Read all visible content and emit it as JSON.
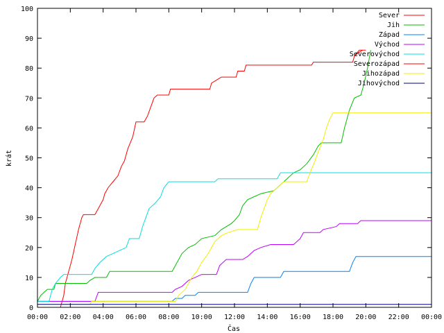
{
  "chart_data": {
    "type": "line",
    "xlabel": "Čas",
    "ylabel": "krát",
    "xlim": [
      0,
      24
    ],
    "ylim": [
      0,
      100
    ],
    "x_ticks": [
      {
        "value": 0,
        "label": "00:00"
      },
      {
        "value": 2,
        "label": "02:00"
      },
      {
        "value": 4,
        "label": "04:00"
      },
      {
        "value": 6,
        "label": "06:00"
      },
      {
        "value": 8,
        "label": "08:00"
      },
      {
        "value": 10,
        "label": "10:00"
      },
      {
        "value": 12,
        "label": "12:00"
      },
      {
        "value": 14,
        "label": "14:00"
      },
      {
        "value": 16,
        "label": "16:00"
      },
      {
        "value": 18,
        "label": "18:00"
      },
      {
        "value": 20,
        "label": "20:00"
      },
      {
        "value": 22,
        "label": "22:00"
      },
      {
        "value": 24,
        "label": "00:00"
      }
    ],
    "y_ticks": [
      0,
      10,
      20,
      30,
      40,
      50,
      60,
      70,
      80,
      90,
      100
    ],
    "grid": false,
    "legend_position": "top-right",
    "series": [
      {
        "name": "Sever",
        "color": "#ff0000",
        "points": [
          [
            1.4,
            0
          ],
          [
            1.6,
            4
          ],
          [
            1.7,
            8
          ],
          [
            1.9,
            12
          ],
          [
            2.1,
            16
          ],
          [
            2.3,
            21
          ],
          [
            2.5,
            26
          ],
          [
            2.7,
            30
          ],
          [
            2.8,
            31
          ],
          [
            3.5,
            31
          ],
          [
            3.6,
            32
          ],
          [
            3.8,
            34
          ],
          [
            4.0,
            36
          ],
          [
            4.1,
            38
          ],
          [
            4.3,
            40
          ],
          [
            4.6,
            42
          ],
          [
            4.9,
            44
          ],
          [
            5.1,
            47
          ],
          [
            5.3,
            49
          ],
          [
            5.5,
            53
          ],
          [
            5.8,
            57
          ],
          [
            6.0,
            62
          ],
          [
            6.5,
            62
          ],
          [
            6.7,
            64
          ],
          [
            6.9,
            67
          ],
          [
            7.1,
            70
          ],
          [
            7.3,
            71
          ],
          [
            8.0,
            71
          ],
          [
            8.1,
            73
          ],
          [
            10.5,
            73
          ],
          [
            10.6,
            75
          ],
          [
            10.9,
            76
          ],
          [
            11.2,
            77
          ],
          [
            12.1,
            77
          ],
          [
            12.2,
            79
          ],
          [
            12.6,
            79
          ],
          [
            12.7,
            81
          ],
          [
            16.7,
            81
          ],
          [
            16.8,
            82
          ],
          [
            19.2,
            82
          ],
          [
            19.3,
            84
          ],
          [
            19.5,
            85
          ],
          [
            19.8,
            86
          ]
        ]
      },
      {
        "name": "Jih",
        "color": "#00c000",
        "points": [
          [
            0,
            2
          ],
          [
            0.2,
            4
          ],
          [
            0.4,
            5
          ],
          [
            0.6,
            6
          ],
          [
            1.0,
            6
          ],
          [
            1.1,
            8
          ],
          [
            3.0,
            8
          ],
          [
            3.2,
            9
          ],
          [
            3.5,
            10
          ],
          [
            4.2,
            10
          ],
          [
            4.4,
            12
          ],
          [
            8.2,
            12
          ],
          [
            8.4,
            14
          ],
          [
            8.8,
            18
          ],
          [
            9.2,
            20
          ],
          [
            9.6,
            21
          ],
          [
            10.0,
            23
          ],
          [
            10.8,
            24
          ],
          [
            11.2,
            26
          ],
          [
            11.8,
            28
          ],
          [
            12.0,
            29
          ],
          [
            12.3,
            31
          ],
          [
            12.5,
            34
          ],
          [
            12.8,
            36
          ],
          [
            13.2,
            37
          ],
          [
            13.6,
            38
          ],
          [
            14.4,
            39
          ],
          [
            14.8,
            41
          ],
          [
            15.2,
            43
          ],
          [
            15.6,
            45
          ],
          [
            16.0,
            46
          ],
          [
            16.4,
            48
          ],
          [
            16.8,
            51
          ],
          [
            17.1,
            54
          ],
          [
            17.3,
            55
          ],
          [
            18.5,
            55
          ],
          [
            18.7,
            60
          ],
          [
            19.0,
            66
          ],
          [
            19.3,
            70
          ],
          [
            19.7,
            71
          ],
          [
            19.9,
            75
          ],
          [
            20.1,
            80
          ],
          [
            20.3,
            86
          ]
        ]
      },
      {
        "name": "Západ",
        "color": "#0080ff",
        "points": [
          [
            0,
            2
          ],
          [
            8.2,
            2
          ],
          [
            8.4,
            3
          ],
          [
            8.8,
            3
          ],
          [
            9.0,
            4
          ],
          [
            9.6,
            4
          ],
          [
            9.8,
            5
          ],
          [
            12.8,
            5
          ],
          [
            13.0,
            8
          ],
          [
            13.2,
            10
          ],
          [
            14.8,
            10
          ],
          [
            15.0,
            12
          ],
          [
            19.0,
            12
          ],
          [
            19.2,
            15
          ],
          [
            19.4,
            17
          ],
          [
            24,
            17
          ]
        ]
      },
      {
        "name": "Východ",
        "color": "#c000ff",
        "points": [
          [
            0,
            2
          ],
          [
            3.5,
            2
          ],
          [
            3.7,
            5
          ],
          [
            8.2,
            5
          ],
          [
            8.4,
            6
          ],
          [
            8.8,
            7
          ],
          [
            9.2,
            9
          ],
          [
            9.6,
            10
          ],
          [
            10.0,
            11
          ],
          [
            10.9,
            11
          ],
          [
            11.1,
            14
          ],
          [
            11.5,
            16
          ],
          [
            12.5,
            16
          ],
          [
            12.8,
            17
          ],
          [
            13.2,
            19
          ],
          [
            13.6,
            20
          ],
          [
            14.2,
            21
          ],
          [
            15.6,
            21
          ],
          [
            16.0,
            23
          ],
          [
            16.2,
            25
          ],
          [
            17.2,
            25
          ],
          [
            17.4,
            26
          ],
          [
            18.2,
            27
          ],
          [
            18.4,
            28
          ],
          [
            19.5,
            28
          ],
          [
            19.7,
            29
          ],
          [
            24,
            29
          ]
        ]
      },
      {
        "name": "Severovýchod",
        "color": "#00e0e0",
        "points": [
          [
            0,
            2
          ],
          [
            0.7,
            2
          ],
          [
            0.9,
            6
          ],
          [
            1.1,
            8
          ],
          [
            1.4,
            10
          ],
          [
            1.6,
            11
          ],
          [
            3.3,
            11
          ],
          [
            3.5,
            13
          ],
          [
            3.8,
            15
          ],
          [
            4.2,
            17
          ],
          [
            4.6,
            18
          ],
          [
            5.0,
            19
          ],
          [
            5.4,
            20
          ],
          [
            5.6,
            23
          ],
          [
            6.2,
            23
          ],
          [
            6.4,
            27
          ],
          [
            6.6,
            30
          ],
          [
            6.8,
            33
          ],
          [
            7.2,
            35
          ],
          [
            7.5,
            37
          ],
          [
            7.7,
            40
          ],
          [
            8.0,
            42
          ],
          [
            10.8,
            42
          ],
          [
            11.0,
            43
          ],
          [
            14.6,
            43
          ],
          [
            14.8,
            45
          ],
          [
            24,
            45
          ]
        ]
      },
      {
        "name": "Severozápad",
        "color": "#ff0000",
        "points": [
          [
            19.3,
            84
          ],
          [
            19.6,
            86
          ],
          [
            20.0,
            86
          ]
        ]
      },
      {
        "name": "Jihozápad",
        "color": "#f0f000",
        "points": [
          [
            0,
            1
          ],
          [
            3.2,
            1
          ],
          [
            3.3,
            2
          ],
          [
            8.4,
            2
          ],
          [
            8.6,
            4
          ],
          [
            9.0,
            6
          ],
          [
            9.4,
            10
          ],
          [
            9.7,
            12
          ],
          [
            10.0,
            15
          ],
          [
            10.4,
            18
          ],
          [
            10.8,
            22
          ],
          [
            11.2,
            24
          ],
          [
            11.6,
            25
          ],
          [
            12.2,
            26
          ],
          [
            13.4,
            26
          ],
          [
            13.6,
            30
          ],
          [
            13.8,
            33
          ],
          [
            14.0,
            36
          ],
          [
            14.2,
            38
          ],
          [
            14.6,
            40
          ],
          [
            15.0,
            42
          ],
          [
            16.4,
            42
          ],
          [
            16.6,
            45
          ],
          [
            16.9,
            49
          ],
          [
            17.1,
            52
          ],
          [
            17.4,
            56
          ],
          [
            17.6,
            60
          ],
          [
            17.8,
            63
          ],
          [
            18.0,
            65
          ],
          [
            24,
            65
          ]
        ]
      },
      {
        "name": "Jihovýchod",
        "color": "#000080",
        "points": [
          [
            0,
            1
          ],
          [
            24,
            1
          ]
        ]
      }
    ]
  }
}
